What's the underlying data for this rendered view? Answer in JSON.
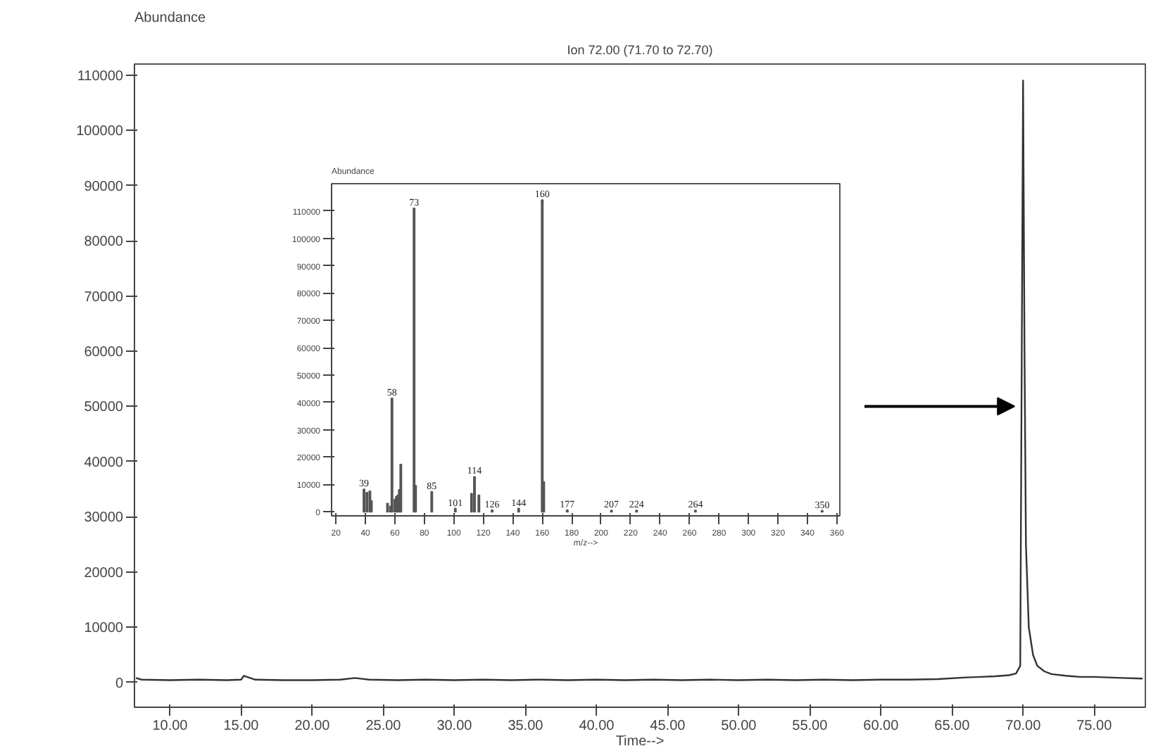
{
  "chart_data": [
    {
      "type": "line",
      "title": "Ion 72.00 (71.70 to 72.70)",
      "ylabel": "Abundance",
      "xlabel": "Time-->",
      "color": "#333333",
      "x": [
        7.6,
        8,
        10,
        12,
        14,
        15,
        15.2,
        16,
        18,
        20,
        22,
        23,
        24,
        26,
        28,
        30,
        32,
        34,
        36,
        38,
        40,
        42,
        44,
        46,
        48,
        50,
        52,
        54,
        56,
        58,
        60,
        62,
        64,
        66,
        67,
        68,
        69,
        69.5,
        69.8,
        70.0,
        70.1,
        70.2,
        70.4,
        70.7,
        71,
        71.5,
        72,
        73,
        74,
        75,
        76,
        77,
        78.4
      ],
      "values": [
        800,
        500,
        400,
        500,
        400,
        500,
        1200,
        500,
        400,
        400,
        500,
        800,
        500,
        400,
        500,
        400,
        500,
        400,
        500,
        400,
        500,
        400,
        500,
        400,
        500,
        400,
        500,
        400,
        500,
        400,
        500,
        500,
        600,
        900,
        1000,
        1100,
        1300,
        1600,
        3000,
        109000,
        60000,
        25000,
        10000,
        5000,
        3000,
        2000,
        1500,
        1200,
        1000,
        1000,
        900,
        800,
        700
      ],
      "xlim": [
        7.5,
        78.6
      ],
      "ylim": [
        -4500,
        112000
      ],
      "xticks": [
        {
          "value": 10,
          "label": "10.00"
        },
        {
          "value": 15,
          "label": "15.00"
        },
        {
          "value": 20,
          "label": "20.00"
        },
        {
          "value": 25,
          "label": "25.00"
        },
        {
          "value": 30,
          "label": "30.00"
        },
        {
          "value": 35,
          "label": "35.00"
        },
        {
          "value": 40,
          "label": "40.00"
        },
        {
          "value": 45,
          "label": "45.00"
        },
        {
          "value": 50,
          "label": "50.00"
        },
        {
          "value": 55,
          "label": "55.00"
        },
        {
          "value": 60,
          "label": "60.00"
        },
        {
          "value": 65,
          "label": "65.00"
        },
        {
          "value": 70,
          "label": "70.00"
        },
        {
          "value": 75,
          "label": "75.00"
        }
      ],
      "yticks": [
        0,
        10000,
        20000,
        30000,
        40000,
        50000,
        60000,
        70000,
        80000,
        90000,
        100000,
        110000
      ],
      "grid": false
    },
    {
      "type": "bar",
      "ylabel": "Abundance",
      "xlabel": "m/z-->",
      "color": "#555555",
      "x": [
        39,
        41,
        43,
        44,
        55,
        57,
        58,
        60,
        61,
        62,
        63,
        64,
        73,
        74,
        85,
        101,
        112,
        114,
        117,
        126,
        144,
        160,
        161,
        177,
        207,
        224,
        264,
        350
      ],
      "values": [
        8200,
        7000,
        7500,
        4000,
        3000,
        2000,
        41500,
        4500,
        5500,
        6000,
        8000,
        17300,
        111000,
        9600,
        7300,
        1200,
        6600,
        12800,
        6000,
        600,
        1200,
        114000,
        10900,
        600,
        500,
        500,
        500,
        400
      ],
      "annotations": [
        {
          "text": "39",
          "x": 39,
          "y": 8200
        },
        {
          "text": "58",
          "x": 58,
          "y": 41500
        },
        {
          "text": "73",
          "x": 73,
          "y": 111000
        },
        {
          "text": "85",
          "x": 85,
          "y": 7300
        },
        {
          "text": "101",
          "x": 101,
          "y": 1200
        },
        {
          "text": "114",
          "x": 114,
          "y": 12800
        },
        {
          "text": "126",
          "x": 126,
          "y": 600
        },
        {
          "text": "144",
          "x": 144,
          "y": 1200
        },
        {
          "text": "160",
          "x": 160,
          "y": 114000
        },
        {
          "text": "177",
          "x": 177,
          "y": 600
        },
        {
          "text": "207",
          "x": 207,
          "y": 500
        },
        {
          "text": "224",
          "x": 224,
          "y": 500
        },
        {
          "text": "264",
          "x": 264,
          "y": 500
        },
        {
          "text": "350",
          "x": 350,
          "y": 400
        }
      ],
      "xlim": [
        17,
        362
      ],
      "ylim": [
        -1500,
        120000
      ],
      "xticks": [
        20,
        40,
        60,
        80,
        100,
        120,
        140,
        160,
        180,
        200,
        220,
        240,
        260,
        280,
        300,
        320,
        340,
        360
      ],
      "yticks": [
        0,
        10000,
        20000,
        30000,
        40000,
        50000,
        60000,
        70000,
        80000,
        90000,
        100000,
        110000
      ],
      "grid": false
    }
  ]
}
